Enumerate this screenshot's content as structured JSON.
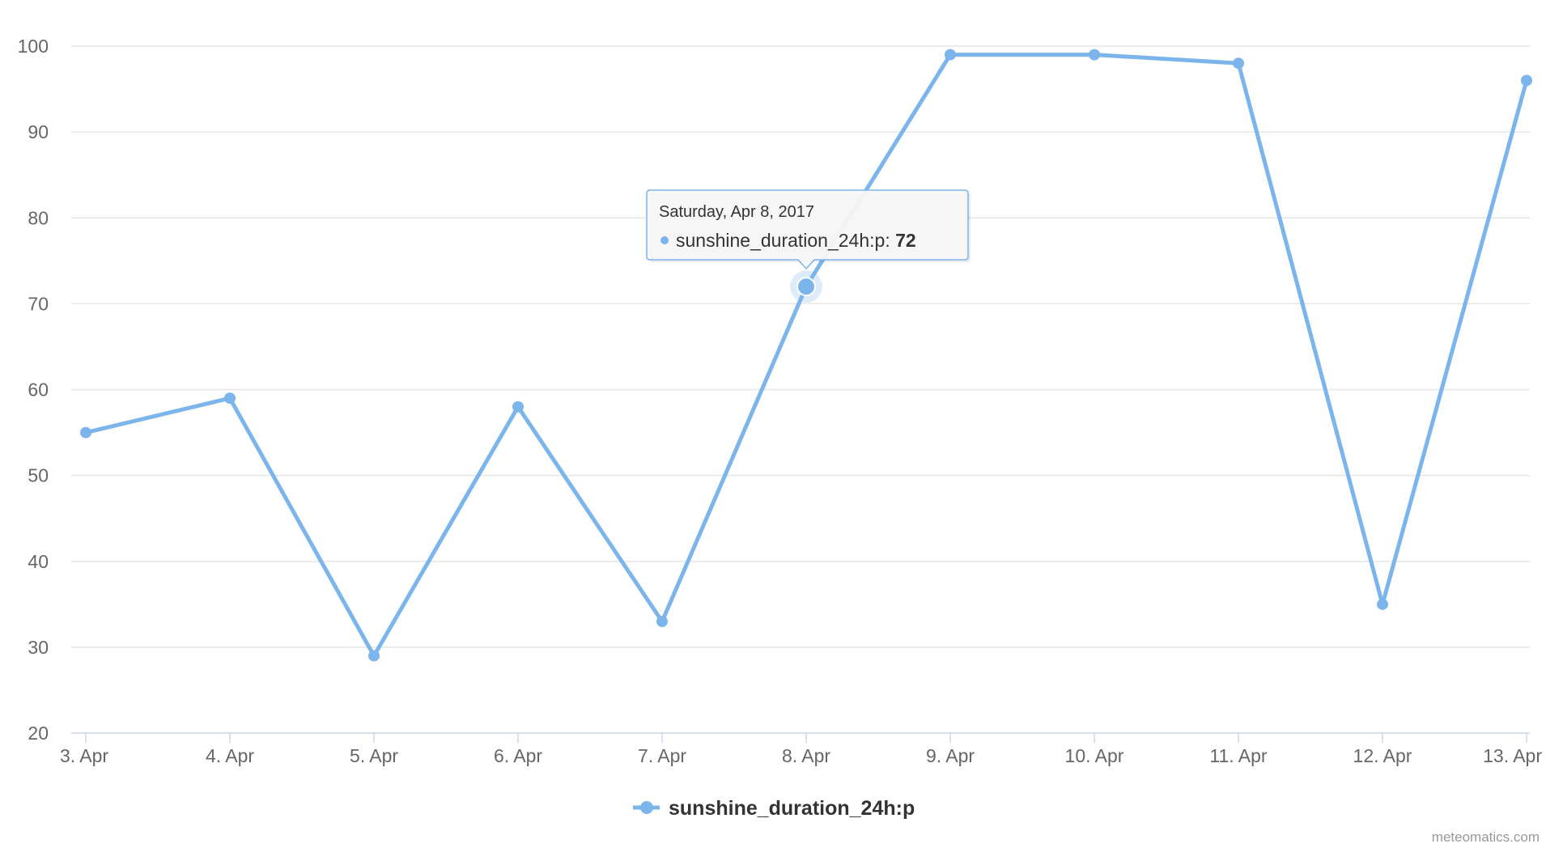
{
  "chart_data": {
    "type": "line",
    "categories": [
      "3. Apr",
      "4. Apr",
      "5. Apr",
      "6. Apr",
      "7. Apr",
      "8. Apr",
      "9. Apr",
      "10. Apr",
      "11. Apr",
      "12. Apr",
      "13. Apr"
    ],
    "y_ticks": [
      "20",
      "30",
      "40",
      "50",
      "60",
      "70",
      "80",
      "90",
      "100"
    ],
    "ylim": [
      20,
      100
    ],
    "grid": true,
    "legend_position": "bottom-center",
    "series": [
      {
        "name": "sunshine_duration_24h:p",
        "color": "#7cb5ec",
        "values": [
          55,
          59,
          29,
          58,
          33,
          72,
          99,
          99,
          98,
          35,
          96
        ]
      }
    ],
    "tooltip": {
      "date": "Saturday, Apr 8, 2017",
      "series_label": "sunshine_duration_24h:p:",
      "value": "72",
      "point_index": 5
    }
  },
  "credit": "meteomatics.com"
}
